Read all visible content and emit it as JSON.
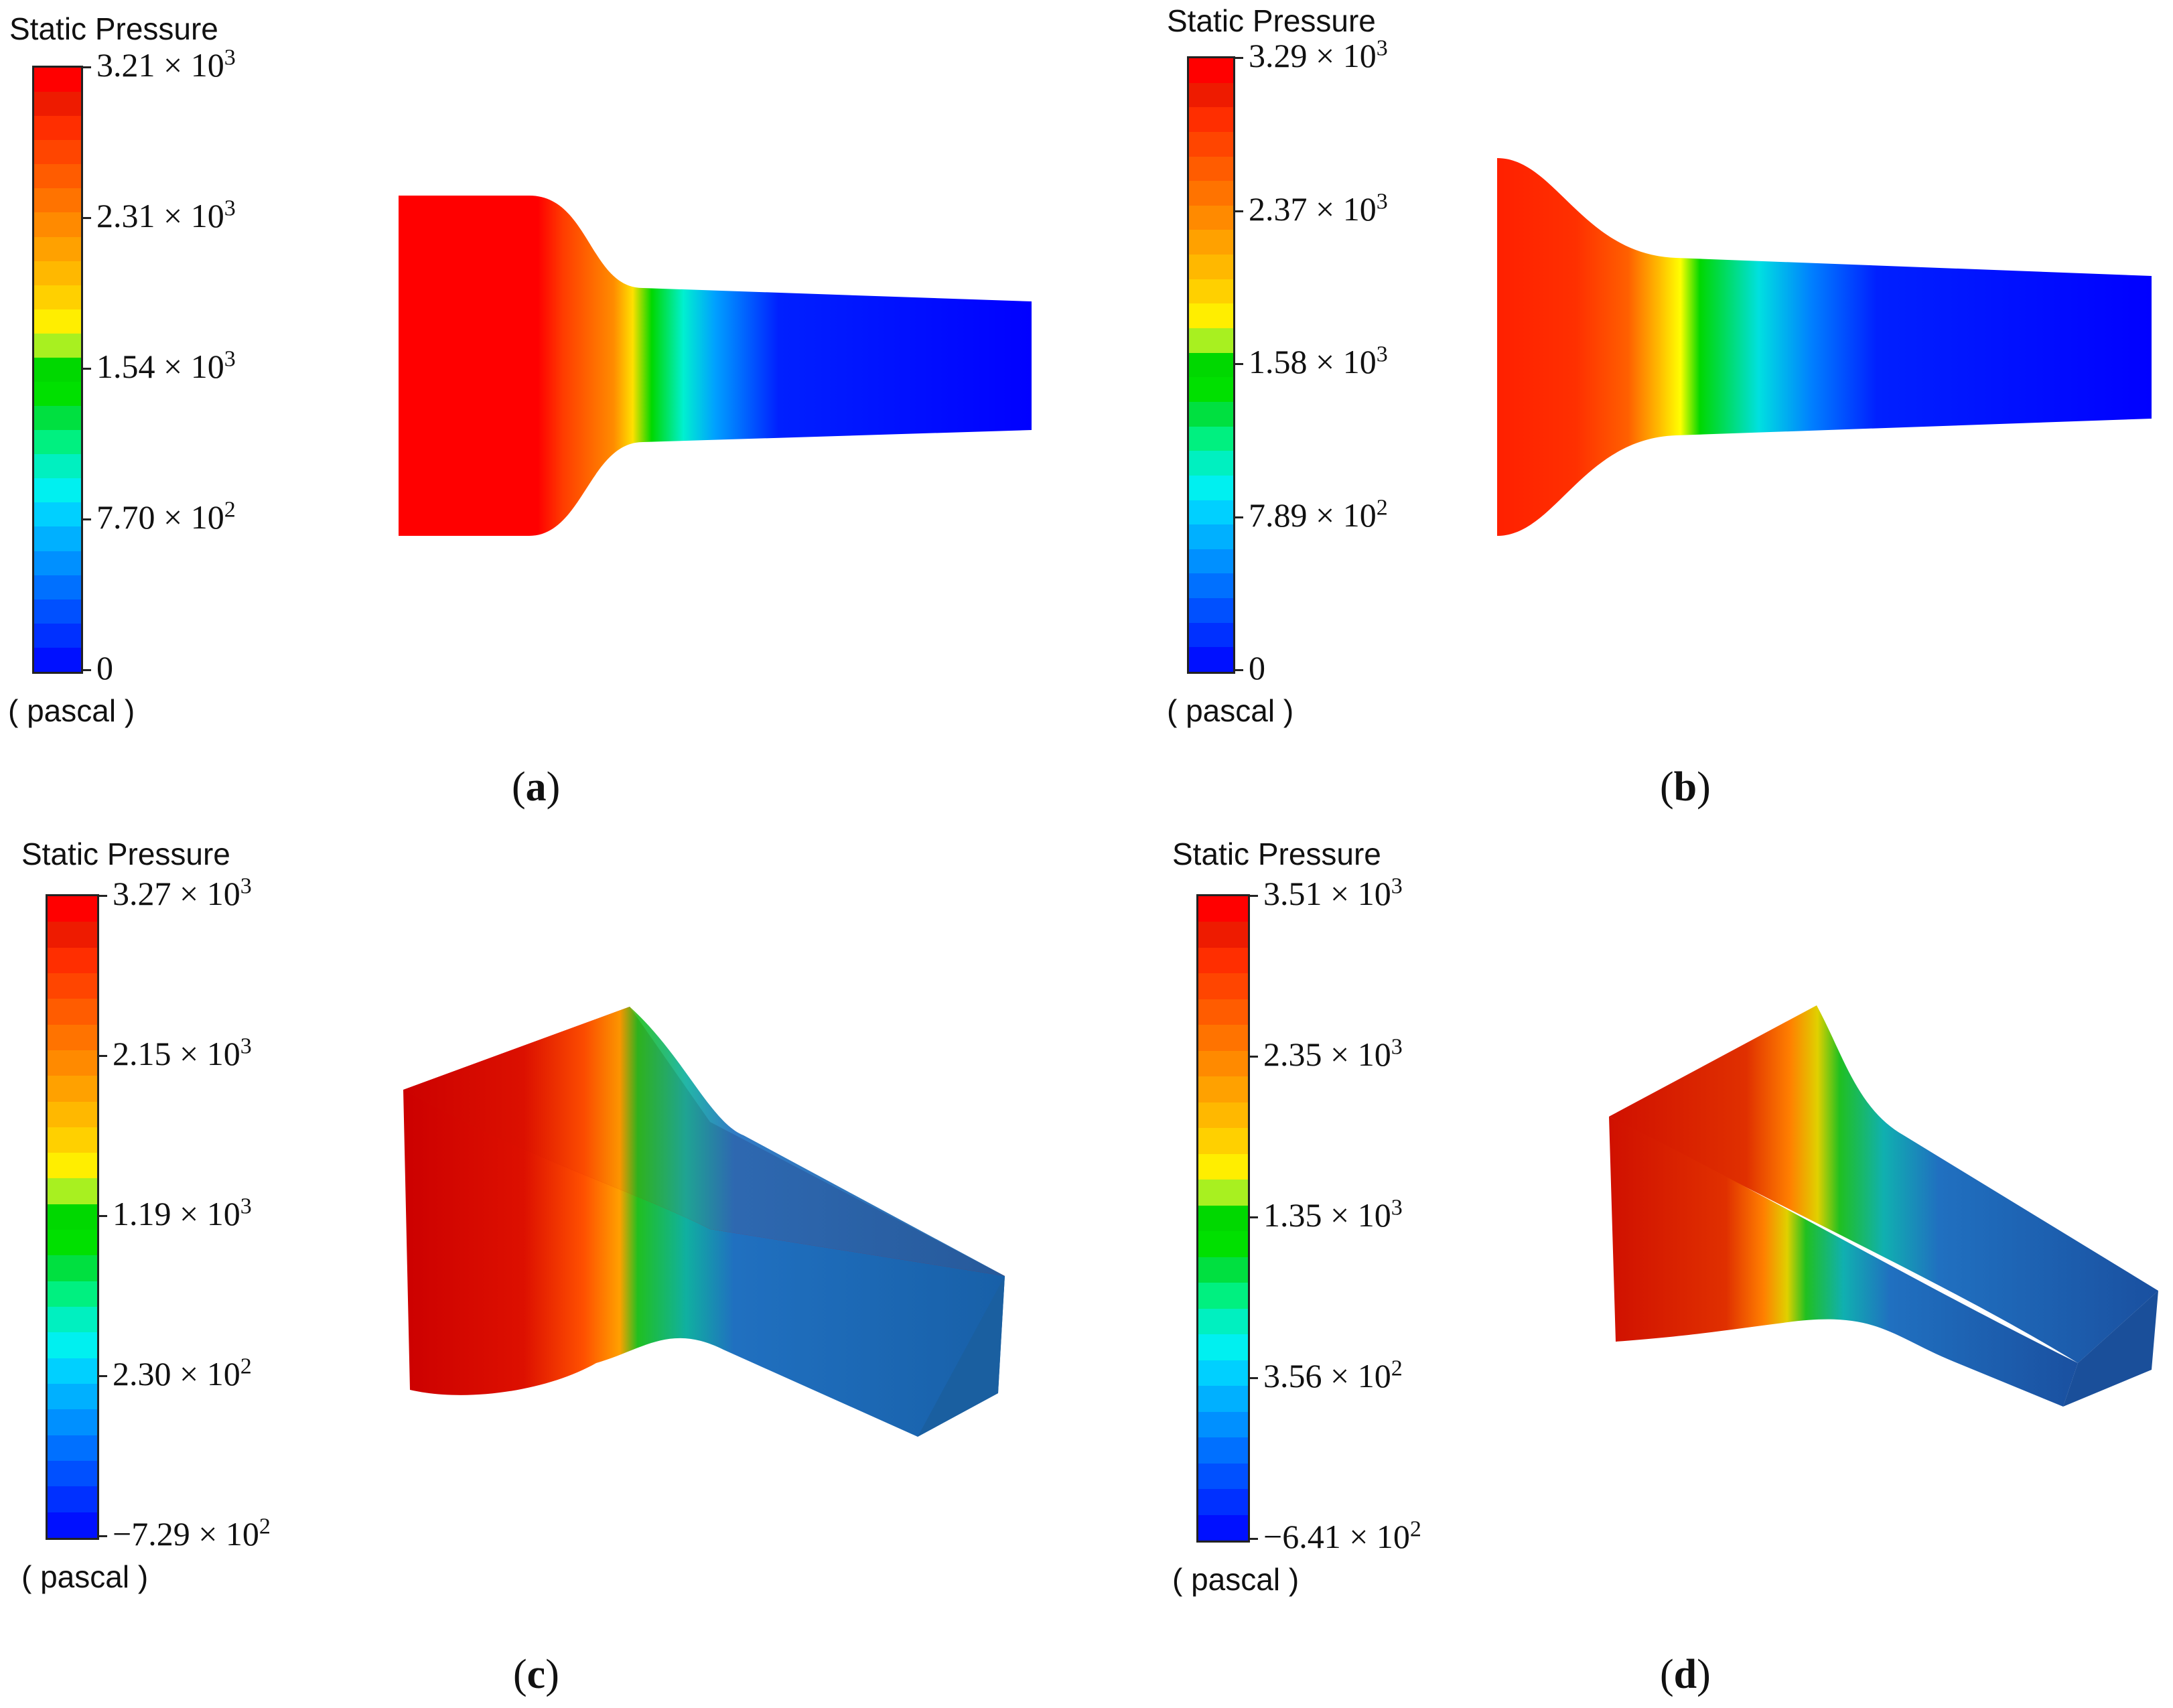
{
  "panels": [
    {
      "id": "a",
      "title": "Static Pressure",
      "unit": "( pascal )",
      "caption_letter": "a",
      "ticks": [
        {
          "mant": "3.21",
          "exp": "3"
        },
        {
          "mant": "2.31",
          "exp": "3"
        },
        {
          "mant": "1.54",
          "exp": "3"
        },
        {
          "mant": "7.70",
          "exp": "2"
        },
        {
          "plain": "0"
        }
      ]
    },
    {
      "id": "b",
      "title": "Static Pressure",
      "unit": "( pascal )",
      "caption_letter": "b",
      "ticks": [
        {
          "mant": "3.29",
          "exp": "3"
        },
        {
          "mant": "2.37",
          "exp": "3"
        },
        {
          "mant": "1.58",
          "exp": "3"
        },
        {
          "mant": "7.89",
          "exp": "2"
        },
        {
          "plain": "0"
        }
      ]
    },
    {
      "id": "c",
      "title": "Static Pressure",
      "unit": "( pascal )",
      "caption_letter": "c",
      "ticks": [
        {
          "mant": "3.27",
          "exp": "3"
        },
        {
          "mant": "2.15",
          "exp": "3"
        },
        {
          "mant": "1.19",
          "exp": "3"
        },
        {
          "mant": "2.30",
          "exp": "2"
        },
        {
          "mant": "−7.29",
          "exp": "2"
        }
      ]
    },
    {
      "id": "d",
      "title": "Static Pressure",
      "unit": "( pascal )",
      "caption_letter": "d",
      "ticks": [
        {
          "mant": "3.51",
          "exp": "3"
        },
        {
          "mant": "2.35",
          "exp": "3"
        },
        {
          "mant": "1.35",
          "exp": "3"
        },
        {
          "mant": "3.56",
          "exp": "2"
        },
        {
          "mant": "−6.41",
          "exp": "2"
        }
      ]
    }
  ],
  "colormap": [
    "#ff0000",
    "#ee1b00",
    "#ff2e00",
    "#ff4500",
    "#ff5c00",
    "#ff7300",
    "#ff8a00",
    "#ffa100",
    "#ffb800",
    "#ffd000",
    "#ffee00",
    "#a8f020",
    "#00d800",
    "#00e000",
    "#00e040",
    "#00f080",
    "#00f0c0",
    "#00f0f0",
    "#00d0ff",
    "#00b0ff",
    "#0090ff",
    "#0070ff",
    "#0050ff",
    "#0030ff",
    "#0010ff"
  ]
}
